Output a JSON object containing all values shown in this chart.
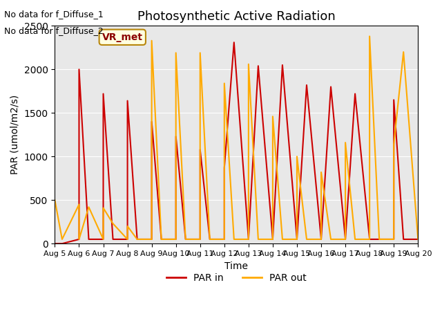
{
  "title": "Photosynthetic Active Radiation",
  "xlabel": "Time",
  "ylabel": "PAR (umol/m2/s)",
  "annotations": [
    "No data for f_Diffuse_1",
    "No data for f_Diffuse_2"
  ],
  "box_label": "VR_met",
  "legend": [
    "PAR in",
    "PAR out"
  ],
  "color_in": "#cc0000",
  "color_out": "#ffaa00",
  "ylim": [
    0,
    2500
  ],
  "xlim": [
    5,
    20
  ],
  "xticks": [
    5,
    6,
    7,
    8,
    9,
    10,
    11,
    12,
    13,
    14,
    15,
    16,
    17,
    18,
    19,
    20
  ],
  "xtick_labels": [
    "Aug 5",
    "Aug 6",
    "Aug 7",
    "Aug 8",
    "Aug 9",
    "Aug 10",
    "Aug 11",
    "Aug 12",
    "Aug 13",
    "Aug 14",
    "Aug 15",
    "Aug 16",
    "Aug 17",
    "Aug 18",
    "Aug 19",
    "Aug 20"
  ],
  "par_in_x": [
    5.0,
    5.3,
    6.0,
    6.0,
    6.4,
    7.0,
    7.0,
    7.4,
    8.0,
    8.0,
    8.4,
    9.0,
    9.0,
    9.4,
    10.0,
    10.0,
    10.4,
    11.0,
    11.0,
    11.4,
    12.0,
    12.0,
    12.4,
    13.0,
    13.0,
    13.4,
    14.0,
    14.0,
    14.4,
    15.0,
    15.0,
    15.4,
    16.0,
    16.0,
    16.4,
    17.0,
    17.0,
    17.4,
    18.0,
    18.4,
    19.0,
    19.0,
    19.4,
    20.0
  ],
  "par_in_y": [
    0,
    0,
    50,
    2000,
    50,
    50,
    1720,
    50,
    50,
    1640,
    50,
    50,
    1400,
    50,
    50,
    1230,
    50,
    50,
    1080,
    50,
    50,
    870,
    2310,
    50,
    50,
    2040,
    50,
    50,
    2050,
    50,
    50,
    1820,
    50,
    50,
    1800,
    50,
    50,
    1720,
    50,
    50,
    50,
    1650,
    50,
    50
  ],
  "par_out_x": [
    5.0,
    5.3,
    6.0,
    6.0,
    6.4,
    7.0,
    7.0,
    7.4,
    8.0,
    8.0,
    8.4,
    9.0,
    9.0,
    9.4,
    10.0,
    10.0,
    10.4,
    11.0,
    11.0,
    11.4,
    12.0,
    12.0,
    12.4,
    13.0,
    13.0,
    13.4,
    14.0,
    14.0,
    14.4,
    15.0,
    15.0,
    15.4,
    16.0,
    16.0,
    16.4,
    17.0,
    17.0,
    17.4,
    18.0,
    18.0,
    18.4,
    19.0,
    19.0,
    19.4,
    20.0
  ],
  "par_out_y": [
    500,
    50,
    450,
    50,
    420,
    50,
    410,
    230,
    50,
    200,
    50,
    50,
    2330,
    50,
    50,
    2190,
    50,
    50,
    2190,
    50,
    50,
    1840,
    50,
    50,
    2060,
    50,
    50,
    1460,
    50,
    50,
    1000,
    50,
    50,
    820,
    50,
    50,
    1160,
    50,
    50,
    2380,
    50,
    50,
    1140,
    2200,
    50
  ]
}
